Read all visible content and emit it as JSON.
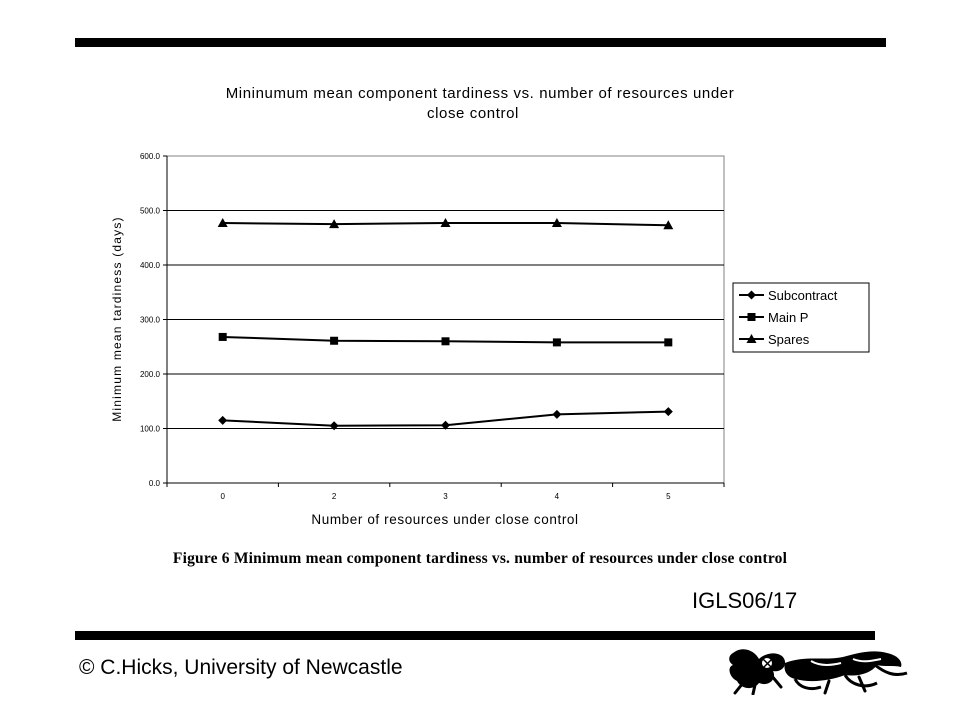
{
  "chart_data": {
    "type": "line",
    "title_lines": [
      "Mininumum mean component tardiness vs. number of resources under",
      "close control"
    ],
    "xlabel": "Number of resources under close control",
    "ylabel": "Minimum mean tardiness (days)",
    "categories": [
      "0",
      "2",
      "3",
      "4",
      "5"
    ],
    "ylim": [
      0,
      600
    ],
    "yticks": [
      "0.0",
      "100.0",
      "200.0",
      "300.0",
      "400.0",
      "500.0",
      "600.0"
    ],
    "grid": true,
    "legend_position": "right",
    "series": [
      {
        "name": "Subcontract",
        "marker": "diamond",
        "values": [
          115,
          105,
          106,
          126,
          131
        ]
      },
      {
        "name": "Main P",
        "marker": "square",
        "values": [
          268,
          261,
          260,
          258,
          258
        ]
      },
      {
        "name": "Spares",
        "marker": "triangle",
        "values": [
          477,
          475,
          477,
          477,
          473
        ]
      }
    ]
  },
  "caption": "Figure 6 Minimum mean component tardiness vs. number of resources under close control",
  "slide_code": "IGLS06/17",
  "footer": "© C.Hicks, University of Newcastle"
}
